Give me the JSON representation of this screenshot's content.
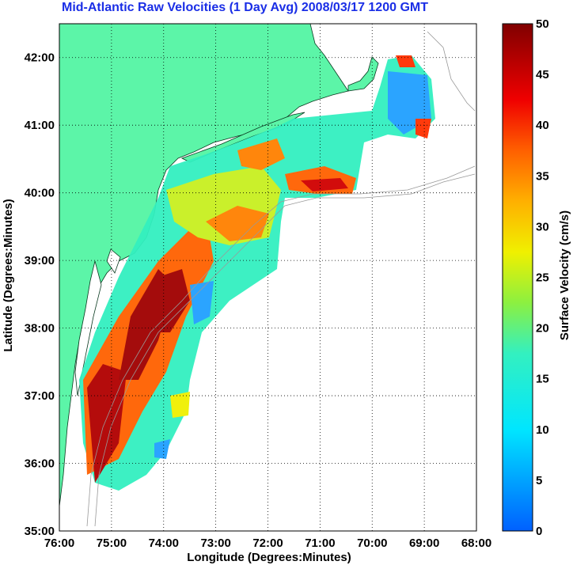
{
  "title": "Mid-Atlantic Raw Velocities (1 Day Avg) 2008/03/17 1200 GMT",
  "chart_data": {
    "type": "heatmap",
    "title": "Mid-Atlantic Raw Velocities (1 Day Avg) 2008/03/17 1200 GMT",
    "xlabel": "Longitude (Degrees:Minutes)",
    "ylabel": "Latitude (Degrees:Minutes)",
    "colorbar_label": "Surface Velocity (cm/s)",
    "x_ticks": [
      "76:00",
      "75:00",
      "74:00",
      "73:00",
      "72:00",
      "71:00",
      "70:00",
      "69:00",
      "68:00"
    ],
    "y_ticks": [
      "35:00",
      "36:00",
      "37:00",
      "38:00",
      "39:00",
      "40:00",
      "41:00",
      "42:00"
    ],
    "colorbar_ticks": [
      "0",
      "5",
      "10",
      "15",
      "20",
      "25",
      "30",
      "35",
      "40",
      "45",
      "50"
    ],
    "xlim": [
      -76,
      -68
    ],
    "ylim": [
      35,
      42.5
    ],
    "clim": [
      0,
      50
    ],
    "grid": true,
    "colors": {
      "land": "#5cf5a8",
      "title": "#1a2ee6",
      "colormap_low": "#0060ff",
      "colormap_high": "#800000"
    }
  }
}
